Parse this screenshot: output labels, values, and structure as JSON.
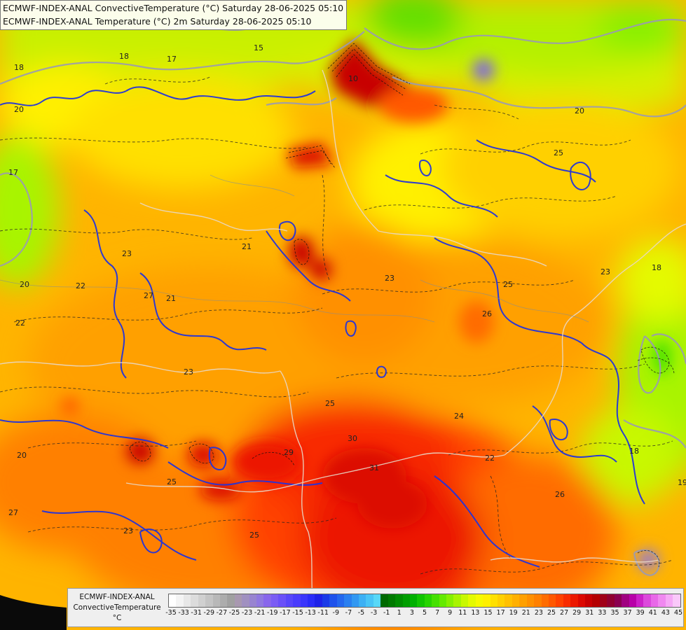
{
  "header": {
    "line1": "ECMWF-INDEX-ANAL ConvectiveTemperature (°C) Saturday 28-06-2025 05:10",
    "line2": "ECMWF-INDEX-ANAL Temperature (°C) 2m Saturday 28-06-2025 05:10"
  },
  "legend": {
    "line1": "ECMWF-INDEX-ANAL",
    "line2": "ConvectiveTemperature",
    "line3": "°C",
    "ticks": [
      "-35",
      "-33",
      "-31",
      "-29",
      "-27",
      "-25",
      "-23",
      "-21",
      "-19",
      "-17",
      "-15",
      "-13",
      "-11",
      "-9",
      "-7",
      "-5",
      "-3",
      "-1",
      "1",
      "3",
      "5",
      "7",
      "9",
      "11",
      "13",
      "15",
      "17",
      "19",
      "21",
      "23",
      "25",
      "27",
      "29",
      "31",
      "33",
      "35",
      "37",
      "39",
      "41",
      "43",
      "45"
    ],
    "colors": [
      "#ffffff",
      "#f4f4f4",
      "#e8e8e8",
      "#dcdcdc",
      "#d0d0d0",
      "#c4c4c4",
      "#b8b8b8",
      "#acacac",
      "#a0a0a0",
      "#a898b0",
      "#a090c0",
      "#9884d0",
      "#9078e0",
      "#8866ec",
      "#7a5cf4",
      "#6a50f8",
      "#5846fa",
      "#4a3cfc",
      "#3a36fc",
      "#2a2cf8",
      "#1e22e8",
      "#1a3ae8",
      "#1e52ec",
      "#2468ee",
      "#2a80f0",
      "#3298f2",
      "#3cb0f4",
      "#48c4f6",
      "#58d8f8",
      "#006a00",
      "#007a00",
      "#008c00",
      "#009e00",
      "#00b000",
      "#10c400",
      "#26d400",
      "#44e000",
      "#64ea00",
      "#86f000",
      "#a8f400",
      "#c8f800",
      "#e4fa00",
      "#f6fa00",
      "#fff000",
      "#ffe000",
      "#ffd000",
      "#ffc000",
      "#ffb000",
      "#ffa000",
      "#ff9000",
      "#ff8000",
      "#ff6c00",
      "#ff5800",
      "#ff4200",
      "#f82c00",
      "#ec1800",
      "#dc0800",
      "#c80000",
      "#b40000",
      "#a00018",
      "#900030",
      "#8a0050",
      "#a00080",
      "#b800a8",
      "#cc20c8",
      "#dc48dc",
      "#e868e8",
      "#f088f0",
      "#f6a8f6",
      "#fac8fa"
    ]
  },
  "map_labels": [
    {
      "text": "18"
    },
    {
      "text": "18"
    },
    {
      "text": "17"
    },
    {
      "text": "15"
    },
    {
      "text": "20"
    },
    {
      "text": "21"
    },
    {
      "text": "23"
    },
    {
      "text": "22"
    },
    {
      "text": "20"
    },
    {
      "text": "22"
    },
    {
      "text": "23"
    },
    {
      "text": "21"
    },
    {
      "text": "23"
    },
    {
      "text": "25"
    },
    {
      "text": "25"
    },
    {
      "text": "26"
    },
    {
      "text": "24"
    },
    {
      "text": "22"
    },
    {
      "text": "29"
    },
    {
      "text": "27"
    },
    {
      "text": "30"
    },
    {
      "text": "25"
    },
    {
      "text": "23"
    },
    {
      "text": "27"
    },
    {
      "text": "31"
    },
    {
      "text": "26"
    },
    {
      "text": "18"
    },
    {
      "text": "19"
    },
    {
      "text": "25"
    },
    {
      "text": "23"
    },
    {
      "text": "20"
    },
    {
      "text": "10"
    },
    {
      "text": "25"
    },
    {
      "text": "18"
    },
    {
      "text": "20"
    },
    {
      "text": "17"
    }
  ]
}
